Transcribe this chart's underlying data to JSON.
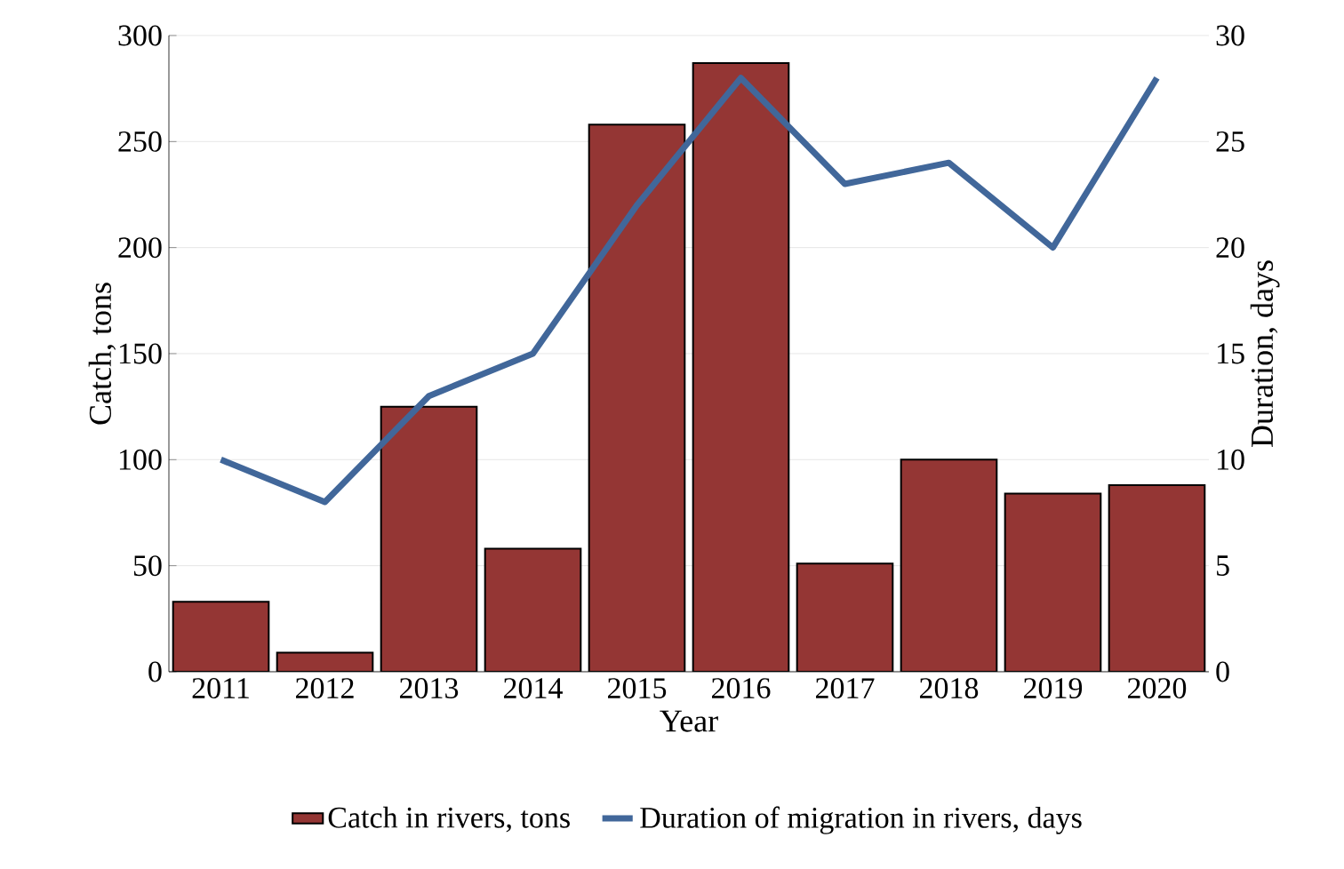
{
  "chart_data": {
    "type": "bar",
    "xlabel": "Year",
    "ylabel": "Catch, tons",
    "y2label": "Duration, days",
    "categories": [
      "2011",
      "2012",
      "2013",
      "2014",
      "2015",
      "2016",
      "2017",
      "2018",
      "2019",
      "2020"
    ],
    "series": [
      {
        "name": "Catch in rivers, tons",
        "color": "#943634",
        "values": [
          33,
          9,
          125,
          58,
          258,
          287,
          51,
          100,
          84,
          88
        ]
      },
      {
        "name": "Duration of migration in rivers, days",
        "color": "#41679a",
        "type": "line",
        "axis": "y2",
        "values": [
          10,
          8,
          13,
          15,
          22,
          28,
          23,
          24,
          20,
          28
        ]
      }
    ],
    "ylim": [
      0,
      300
    ],
    "yticks": [
      0,
      50,
      100,
      150,
      200,
      250,
      300
    ],
    "y2lim": [
      0,
      30
    ],
    "y2ticks": [
      0,
      5,
      10,
      15,
      20,
      25,
      30
    ],
    "grid": "y",
    "legend": "bottom",
    "marker": "none",
    "line_style": "solid"
  }
}
